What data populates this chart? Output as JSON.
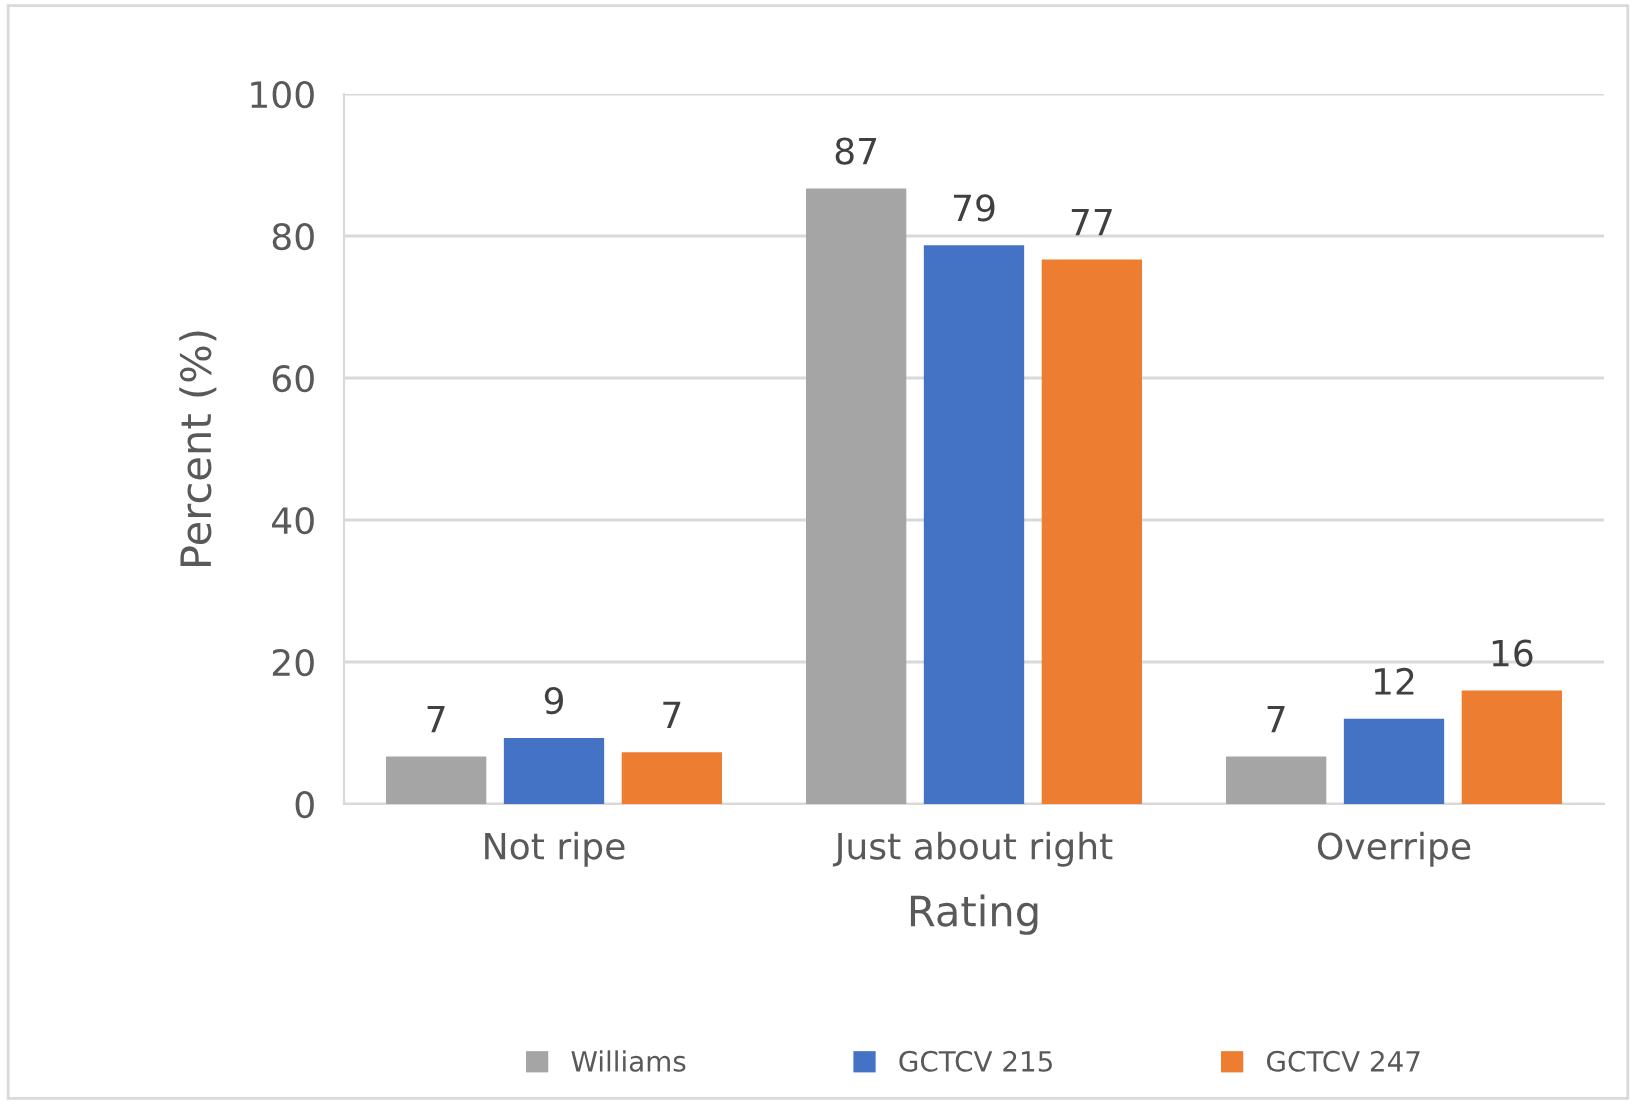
{
  "chart_data": {
    "type": "bar",
    "xlabel": "Rating",
    "ylabel": "Percent (%)",
    "categories": [
      "Not ripe",
      "Just about right",
      "Overripe"
    ],
    "series": [
      {
        "name": "Williams",
        "color": "#a5a5a5",
        "values": [
          6.7,
          86.7,
          6.7
        ],
        "value_labels": [
          "7",
          "87",
          "7"
        ]
      },
      {
        "name": "GCTCV 215",
        "color": "#4472c4",
        "values": [
          9.3,
          78.7,
          12.0
        ],
        "value_labels": [
          "9",
          "79",
          "12"
        ]
      },
      {
        "name": "GCTCV 247",
        "color": "#ed7d31",
        "values": [
          7.3,
          76.7,
          16.0
        ],
        "value_labels": [
          "7",
          "77",
          "16"
        ]
      }
    ],
    "ylim": [
      0,
      100
    ],
    "yticks": [
      0,
      20,
      40,
      60,
      80,
      100
    ],
    "grid": "y",
    "legend": "bottom"
  }
}
